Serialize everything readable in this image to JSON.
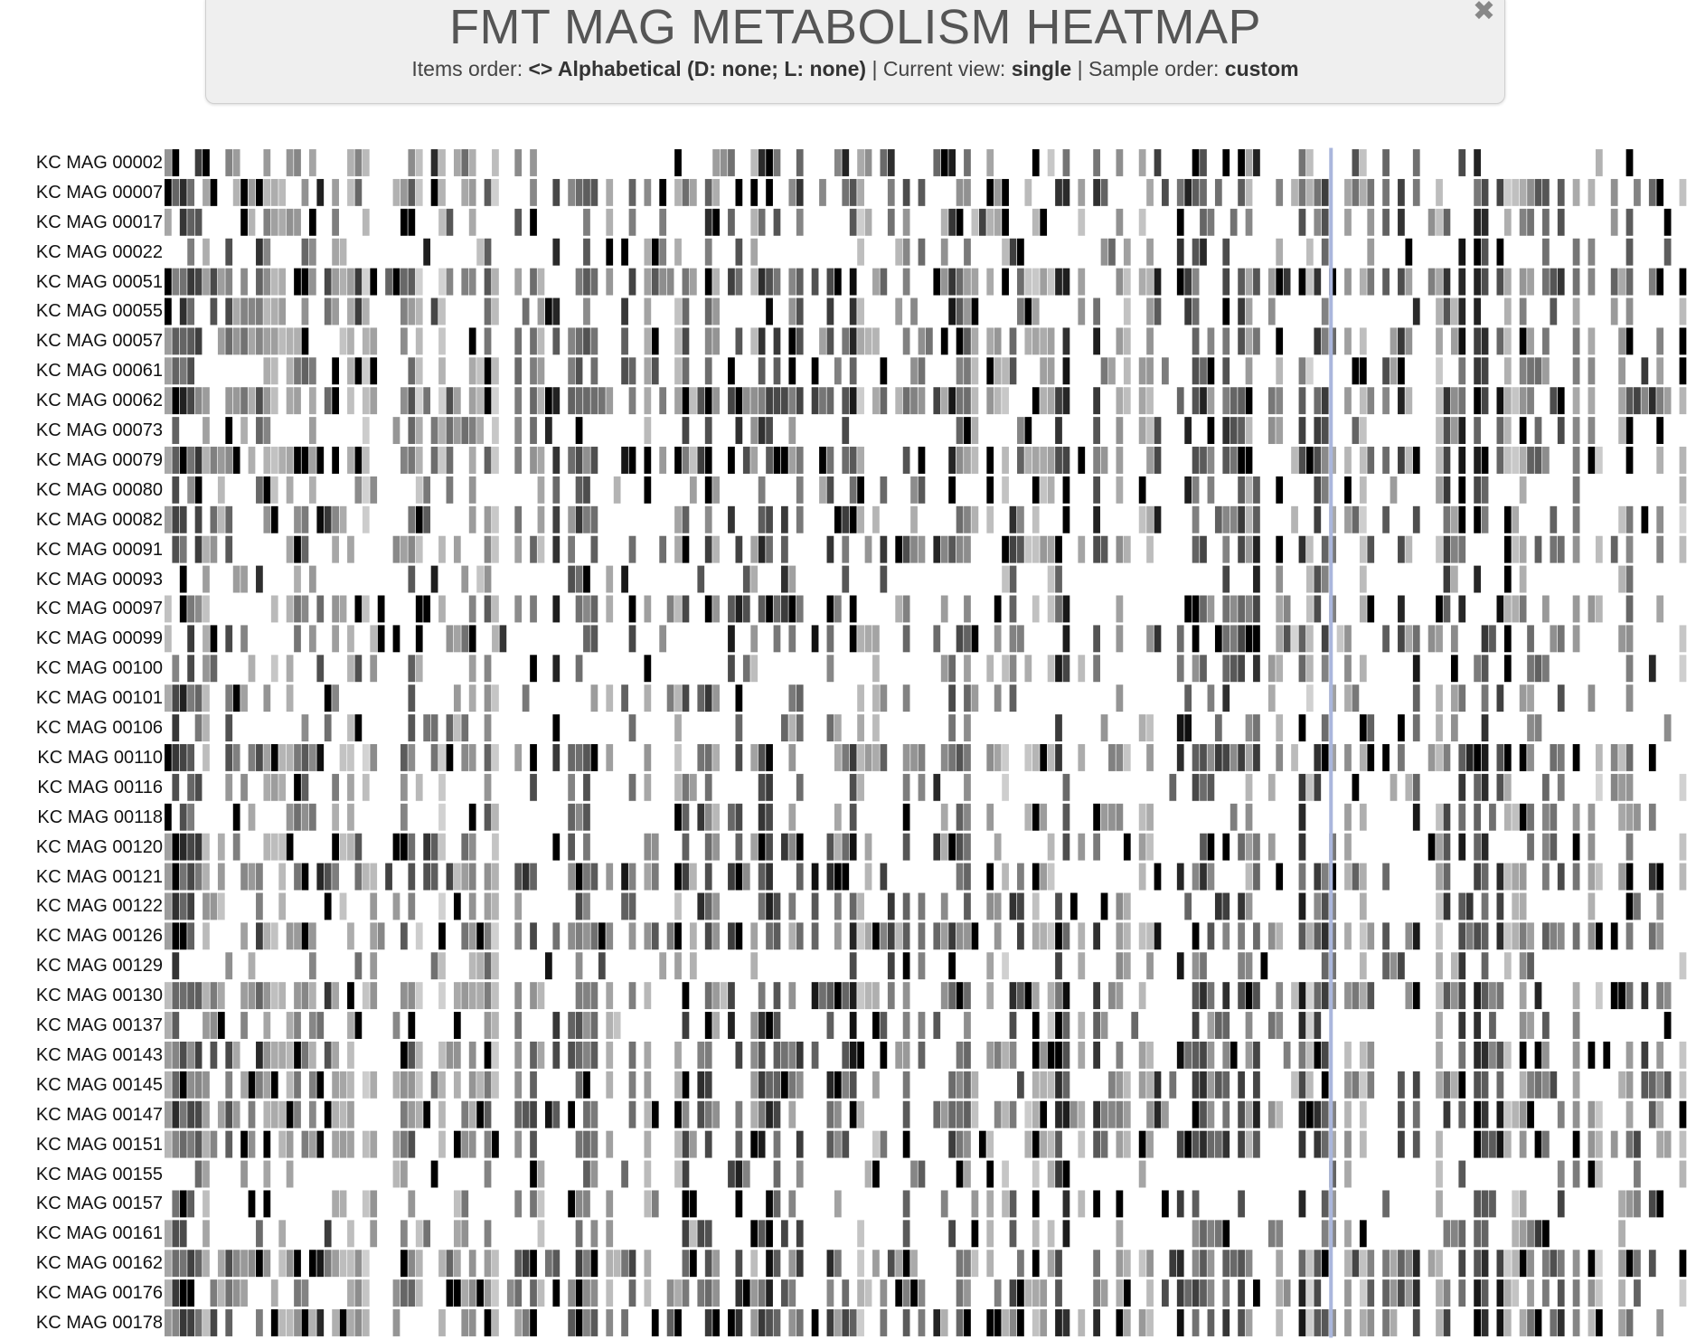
{
  "header": {
    "title": "FMT MAG METABOLISM HEATMAP",
    "items_order_label": "Items order:",
    "items_order_value": "<> Alphabetical (D: none; L: none)",
    "current_view_label": "Current view:",
    "current_view_value": "single",
    "sample_order_label": "Sample order:",
    "sample_order_value": "custom",
    "separator": "|",
    "close_glyph": "✖"
  },
  "colors": {
    "high": "#000000",
    "low": "#ffffff",
    "selection_marker": "#aab6dc",
    "panel_background": "#efefef"
  },
  "chart_data": {
    "type": "heatmap",
    "rows": [
      "KC MAG 00002",
      "KC MAG 00007",
      "KC MAG 00017",
      "KC MAG 00022",
      "KC MAG 00051",
      "KC MAG 00055",
      "KC MAG 00057",
      "KC MAG 00061",
      "KC MAG 00062",
      "KC MAG 00073",
      "KC MAG 00079",
      "KC MAG 00080",
      "KC MAG 00082",
      "KC MAG 00091",
      "KC MAG 00093",
      "KC MAG 00097",
      "KC MAG 00099",
      "KC MAG 00100",
      "KC MAG 00101",
      "KC MAG 00106",
      "KC MAG 00110",
      "KC MAG 00116",
      "KC MAG 00118",
      "KC MAG 00120",
      "KC MAG 00121",
      "KC MAG 00122",
      "KC MAG 00126",
      "KC MAG 00129",
      "KC MAG 00130",
      "KC MAG 00137",
      "KC MAG 00143",
      "KC MAG 00145",
      "KC MAG 00147",
      "KC MAG 00151",
      "KC MAG 00155",
      "KC MAG 00157",
      "KC MAG 00161",
      "KC MAG 00162",
      "KC MAG 00176",
      "KC MAG 00178"
    ],
    "column_count": 200,
    "value_range": [
      0,
      1
    ],
    "colormap": "white-to-black",
    "selected_column_index": 153
  }
}
